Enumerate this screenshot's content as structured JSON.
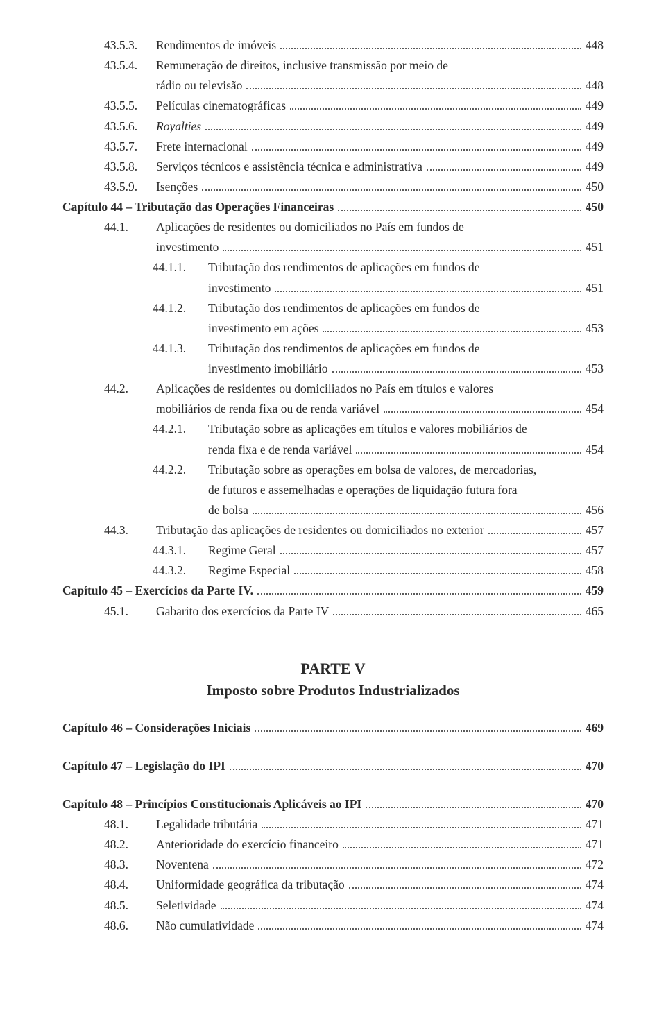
{
  "text_color": "#2b2b2b",
  "background_color": "#ffffff",
  "dot_color": "#5a5a5a",
  "font_family": "Georgia, Times New Roman, serif",
  "base_font_size_pt": 13,
  "part": {
    "label": "PARTE V",
    "title": "Imposto sobre Produtos Industrializados"
  },
  "entries": [
    {
      "indent": 1,
      "num": "43.5.3.",
      "title": "Rendimentos de imóveis",
      "page": "448"
    },
    {
      "indent": 1,
      "num": "43.5.4.",
      "title": "Remuneração de direitos, inclusive transmissão por meio de",
      "cont": "rádio ou televisão",
      "page": "448"
    },
    {
      "indent": 1,
      "num": "43.5.5.",
      "title": "Películas cinematográficas",
      "page": "449"
    },
    {
      "indent": 1,
      "num": "43.5.6.",
      "title": "Royalties",
      "italic": true,
      "page": "449"
    },
    {
      "indent": 1,
      "num": "43.5.7.",
      "title": "Frete internacional",
      "page": "449"
    },
    {
      "indent": 1,
      "num": "43.5.8.",
      "title": "Serviços técnicos e assistência técnica e administrativa",
      "page": "449"
    },
    {
      "indent": 1,
      "num": "43.5.9.",
      "title": "Isenções",
      "page": "450"
    },
    {
      "indent": 0,
      "num": "",
      "title": "Capítulo 44 – Tributação das Operações Financeiras",
      "page": "450",
      "bold": true
    },
    {
      "indent": 1,
      "num": "44.1.",
      "title": "Aplicações de residentes ou domiciliados no País em fundos de",
      "cont": "investimento",
      "page": "451"
    },
    {
      "indent": 2,
      "num": "44.1.1.",
      "title": "Tributação dos rendimentos de aplicações em fundos de",
      "cont": "investimento",
      "page": "451"
    },
    {
      "indent": 2,
      "num": "44.1.2.",
      "title": "Tributação dos rendimentos de aplicações em fundos de",
      "cont": "investimento em ações",
      "page": "453"
    },
    {
      "indent": 2,
      "num": "44.1.3.",
      "title": "Tributação dos rendimentos de aplicações em fundos de",
      "cont": "investimento imobiliário",
      "page": "453"
    },
    {
      "indent": 1,
      "num": "44.2.",
      "title": "Aplicações de residentes ou domiciliados no País em títulos e valores",
      "cont": "mobiliários de renda fixa ou de renda variável",
      "page": "454"
    },
    {
      "indent": 2,
      "num": "44.2.1.",
      "title": "Tributação sobre as aplicações em títulos e valores mobiliários de",
      "cont": "renda fixa e de renda variável",
      "page": "454"
    },
    {
      "indent": 2,
      "num": "44.2.2.",
      "title": "Tributação sobre as operações em bolsa de valores, de mercadorias,",
      "cont2": [
        "de futuros e assemelhadas e operações de liquidação futura fora",
        "de bolsa"
      ],
      "page": "456"
    },
    {
      "indent": 1,
      "num": "44.3.",
      "title": "Tributação das aplicações de residentes ou domiciliados no exterior",
      "page": "457"
    },
    {
      "indent": 2,
      "num": "44.3.1.",
      "title": "Regime Geral",
      "page": "457"
    },
    {
      "indent": 2,
      "num": "44.3.2.",
      "title": "Regime Especial",
      "page": "458"
    },
    {
      "indent": 0,
      "num": "",
      "title": "Capítulo 45 – Exercícios da Parte IV.",
      "page": "459",
      "bold": true
    },
    {
      "indent": 1,
      "num": "45.1.",
      "title": "Gabarito dos exercícios da Parte IV",
      "page": "465"
    },
    {
      "part_break": true
    },
    {
      "indent": 0,
      "num": "",
      "title": "Capítulo 46 – Considerações Iniciais",
      "page": "469",
      "bold": true,
      "gap": true
    },
    {
      "indent": 0,
      "num": "",
      "title": "Capítulo 47 – Legislação do IPI",
      "page": "470",
      "bold": true,
      "gap": true
    },
    {
      "indent": 0,
      "num": "",
      "title": "Capítulo 48 – Princípios Constitucionais Aplicáveis ao IPI",
      "page": "470",
      "bold": true,
      "gap": true
    },
    {
      "indent": 1,
      "num": "48.1.",
      "title": "Legalidade tributária",
      "page": "471"
    },
    {
      "indent": 1,
      "num": "48.2.",
      "title": "Anterioridade do exercício financeiro",
      "page": "471"
    },
    {
      "indent": 1,
      "num": "48.3.",
      "title": "Noventena",
      "page": "472"
    },
    {
      "indent": 1,
      "num": "48.4.",
      "title": "Uniformidade geográfica da tributação",
      "page": "474"
    },
    {
      "indent": 1,
      "num": "48.5.",
      "title": "Seletividade",
      "page": "474"
    },
    {
      "indent": 1,
      "num": "48.6.",
      "title": "Não cumulatividade",
      "page": "474"
    }
  ]
}
